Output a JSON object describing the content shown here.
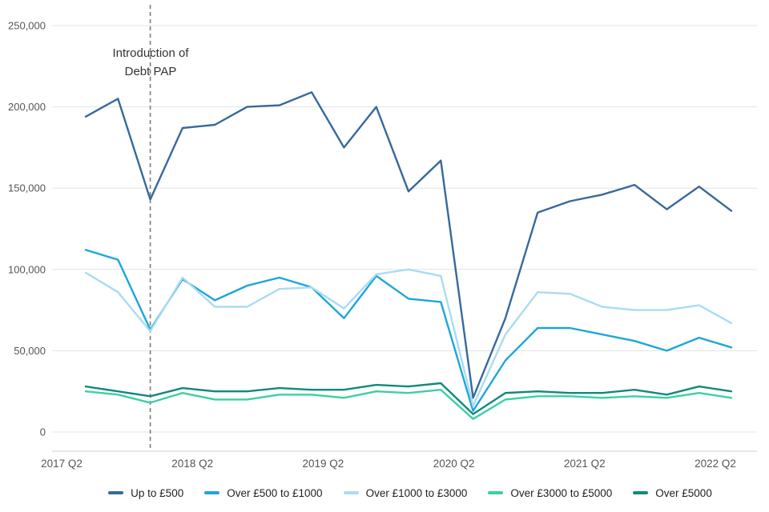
{
  "chart_data": {
    "type": "line",
    "title": "",
    "xlabel": "",
    "ylabel": "",
    "grid": "horizontal",
    "legend_position": "bottom",
    "ylim": [
      0,
      250000
    ],
    "y_ticks": [
      0,
      50000,
      100000,
      150000,
      200000,
      250000
    ],
    "y_tick_labels": [
      "0",
      "50,000",
      "100,000",
      "150,000",
      "200,000",
      "250,000"
    ],
    "x_tick_labels": [
      "2017 Q2",
      "2018 Q2",
      "2019 Q2",
      "2020 Q2",
      "2021 Q2",
      "2022 Q2"
    ],
    "categories": [
      "2017 Q2",
      "2017 Q3",
      "2017 Q4",
      "2018 Q1",
      "2018 Q2",
      "2018 Q3",
      "2018 Q4",
      "2019 Q1",
      "2019 Q2",
      "2019 Q3",
      "2019 Q4",
      "2020 Q1",
      "2020 Q2",
      "2020 Q3",
      "2020 Q4",
      "2021 Q1",
      "2021 Q2",
      "2021 Q3",
      "2021 Q4",
      "2022 Q1",
      "2022 Q2"
    ],
    "series": [
      {
        "name": "Up to £500",
        "color": "#37699c",
        "values": [
          194000,
          205000,
          143000,
          187000,
          189000,
          200000,
          201000,
          209000,
          175000,
          200000,
          148000,
          167000,
          21000,
          70000,
          135000,
          142000,
          146000,
          152000,
          137000,
          151000,
          136000
        ]
      },
      {
        "name": "Over £500 to £1000",
        "color": "#1ea5dc",
        "values": [
          112000,
          106000,
          63000,
          94000,
          81000,
          90000,
          95000,
          89000,
          70000,
          96000,
          82000,
          80000,
          13000,
          44000,
          64000,
          64000,
          60000,
          56000,
          50000,
          58000,
          52000
        ]
      },
      {
        "name": "Over £1000 to £3000",
        "color": "#a9dcf1",
        "values": [
          98000,
          86000,
          62000,
          95000,
          77000,
          77000,
          88000,
          89000,
          76000,
          97000,
          100000,
          96000,
          16000,
          60000,
          86000,
          85000,
          77000,
          75000,
          75000,
          78000,
          67000
        ]
      },
      {
        "name": "Over £3000 to £5000",
        "color": "#3ccfa5",
        "values": [
          25000,
          23000,
          18000,
          24000,
          20000,
          20000,
          23000,
          23000,
          21000,
          25000,
          24000,
          26000,
          8000,
          20000,
          22000,
          22000,
          21000,
          22000,
          21000,
          24000,
          21000
        ]
      },
      {
        "name": "Over £5000",
        "color": "#11897d",
        "values": [
          28000,
          25000,
          22000,
          27000,
          25000,
          25000,
          27000,
          26000,
          26000,
          29000,
          28000,
          30000,
          11000,
          24000,
          25000,
          24000,
          24000,
          26000,
          23000,
          28000,
          25000
        ]
      }
    ],
    "annotation": {
      "line1": "Introduction of",
      "line2": "Debt PAP",
      "at_category": "2017 Q4",
      "style": "dashed-vertical-line"
    }
  },
  "colors": {
    "background": "#ffffff",
    "grid": "#e3e3e3",
    "axis_line": "#cfcfcf",
    "tick_text": "#555555",
    "dashed_line": "#7d7d7d",
    "annotation_text": "#333333",
    "legend_text": "#1f1f1f"
  }
}
